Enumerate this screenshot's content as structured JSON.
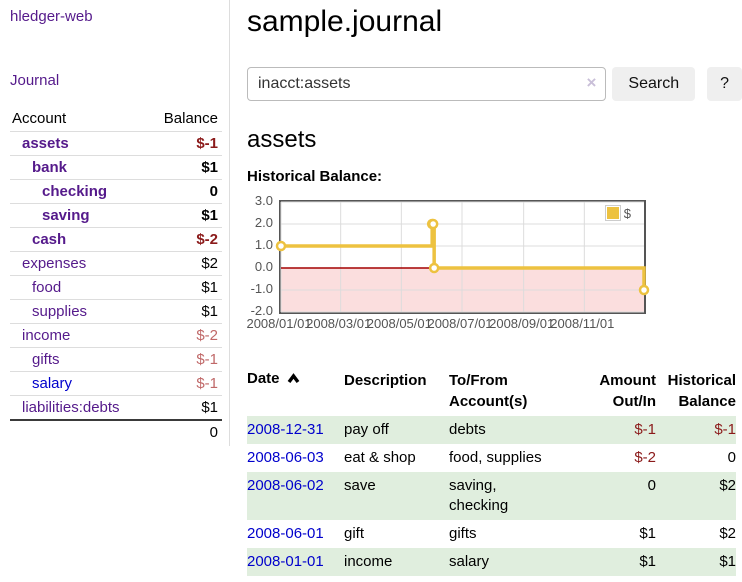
{
  "sidebar": {
    "brand": "hledger-web",
    "journal_label": "Journal",
    "accounts": {
      "header_account": "Account",
      "header_balance": "Balance",
      "rows": [
        {
          "account": "assets",
          "balance": "$-1"
        },
        {
          "account": "bank",
          "balance": "$1"
        },
        {
          "account": "checking",
          "balance": "0"
        },
        {
          "account": "saving",
          "balance": "$1"
        },
        {
          "account": "cash",
          "balance": "$-2"
        },
        {
          "account": "expenses",
          "balance": "$2"
        },
        {
          "account": "food",
          "balance": "$1"
        },
        {
          "account": "supplies",
          "balance": "$1"
        },
        {
          "account": "income",
          "balance": "$-2"
        },
        {
          "account": "gifts",
          "balance": "$-1"
        },
        {
          "account": "salary",
          "balance": "$-1"
        },
        {
          "account": "liabilities:debts",
          "balance": "$1"
        }
      ],
      "total": "0"
    }
  },
  "main": {
    "title": "sample.journal",
    "search": {
      "value": "inacct:assets",
      "clear_icon": "×",
      "button_label": "Search",
      "help_label": "?"
    },
    "account_heading": "assets",
    "table": {
      "headers": {
        "date": {
          "label": "Date"
        },
        "description": {
          "label": "Description"
        },
        "tofrom": {
          "line1": "To/From",
          "line2": "Account(s)"
        },
        "amount": {
          "line1": "Amount",
          "line2": "Out/In"
        },
        "historical": {
          "line1": "Historical",
          "line2": "Balance"
        }
      },
      "rows": [
        {
          "date": "2008-12-31",
          "description": "pay off",
          "accounts": "debts",
          "amount": "$-1",
          "balance": "$-1"
        },
        {
          "date": "2008-06-03",
          "description": "eat & shop",
          "accounts": "food, supplies",
          "amount": "$-2",
          "balance": "0"
        },
        {
          "date": "2008-06-02",
          "description": "save",
          "accounts": "saving, checking",
          "amount": "0",
          "balance": "$2"
        },
        {
          "date": "2008-06-01",
          "description": "gift",
          "accounts": "gifts",
          "amount": "$1",
          "balance": "$2"
        },
        {
          "date": "2008-01-01",
          "description": "income",
          "accounts": "salary",
          "amount": "$1",
          "balance": "$1"
        }
      ]
    }
  },
  "chart_data": {
    "type": "line",
    "title": "Historical Balance:",
    "step": true,
    "series": [
      {
        "name": "$",
        "color": "#edc240",
        "points": [
          {
            "x": "2008-01-01",
            "y": 1
          },
          {
            "x": "2008-06-01",
            "y": 2
          },
          {
            "x": "2008-06-02",
            "y": 2
          },
          {
            "x": "2008-06-03",
            "y": 0
          },
          {
            "x": "2008-12-31",
            "y": -1
          }
        ]
      }
    ],
    "xlim": [
      "2008-01-01",
      "2008-12-31"
    ],
    "ylim": [
      -2,
      3
    ],
    "y_ticks": [
      {
        "value": 3,
        "label": "3.0"
      },
      {
        "value": 2,
        "label": "2.0"
      },
      {
        "value": 1,
        "label": "1.0"
      },
      {
        "value": 0,
        "label": "0.0"
      },
      {
        "value": -1,
        "label": "-1.0"
      },
      {
        "value": -2,
        "label": "-2.0"
      }
    ],
    "x_ticks": [
      {
        "date": "2008-01-01",
        "label": "2008/01/01"
      },
      {
        "date": "2008-03-01",
        "label": "2008/03/01"
      },
      {
        "date": "2008-05-01",
        "label": "2008/05/01"
      },
      {
        "date": "2008-07-01",
        "label": "2008/07/01"
      },
      {
        "date": "2008-09-01",
        "label": "2008/09/01"
      },
      {
        "date": "2008-11-01",
        "label": "2008/11/01"
      }
    ],
    "legend": {
      "label": "$",
      "position": "top-right"
    },
    "grid": true,
    "colors": {
      "negative_fill": "#fbdede",
      "zero_line": "#a40000",
      "grid": "#dcdcdc",
      "border": "#555555"
    }
  }
}
